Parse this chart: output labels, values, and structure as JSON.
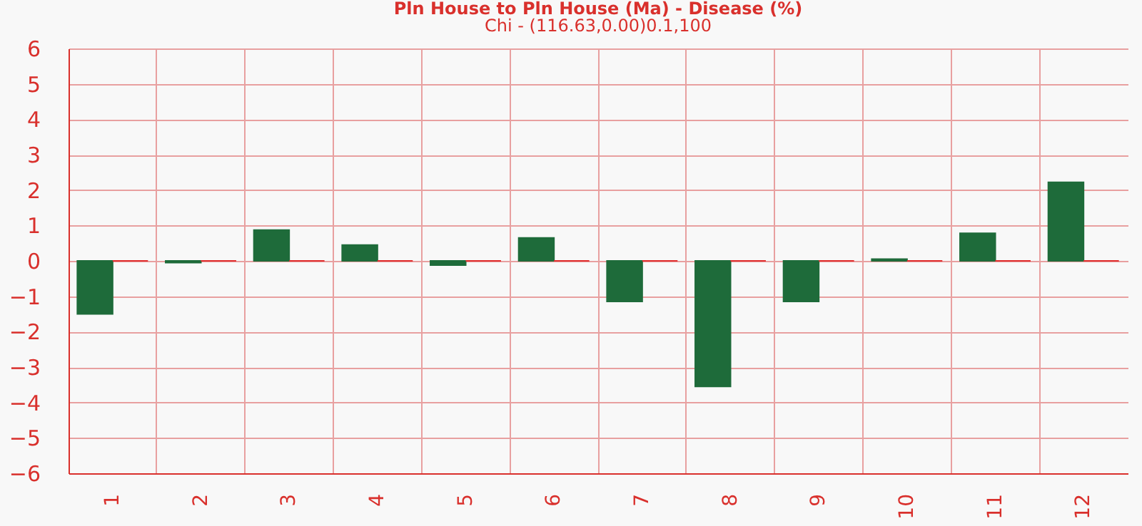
{
  "chart_data": {
    "type": "bar",
    "title": "Pln House to Pln House (Ma) - Disease (%)",
    "subtitle": "Chi - (116.63,0.00)0.1,100",
    "categories": [
      "1",
      "2",
      "3",
      "4",
      "5",
      "6",
      "7",
      "8",
      "9",
      "10",
      "11",
      "12"
    ],
    "series": [
      {
        "color": "#1e6b3a",
        "values": [
          -1.5,
          -0.05,
          0.87,
          0.45,
          -0.12,
          0.65,
          -1.15,
          -3.55,
          -1.15,
          0.05,
          0.78,
          2.22
        ]
      },
      {
        "color": "#e03030",
        "values": [
          0,
          0,
          0,
          0,
          0,
          0,
          0,
          0,
          0,
          0,
          0,
          0
        ]
      }
    ],
    "ylim": [
      -6,
      6
    ],
    "yticks": [
      -6,
      -5,
      -4,
      -3,
      -2,
      -1,
      0,
      1,
      2,
      3,
      4,
      5,
      6
    ],
    "grid": true
  }
}
